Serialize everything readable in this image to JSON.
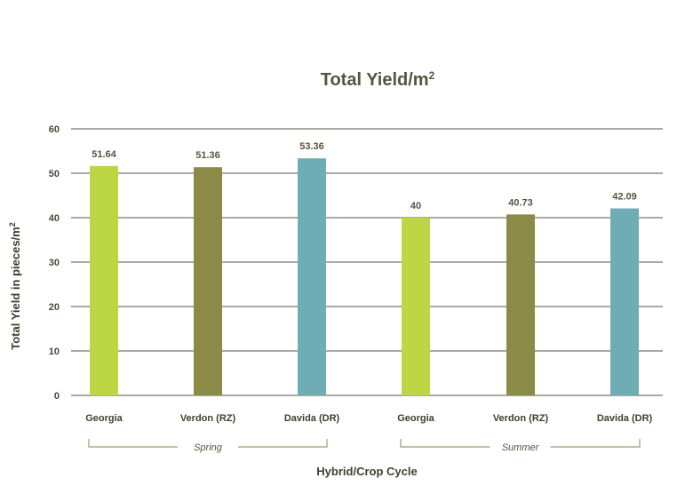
{
  "chart_data": {
    "type": "bar",
    "title": "Total Yield/m",
    "title_superscript": "2",
    "ylabel": "Total Yield in pieces/m",
    "ylabel_superscript": "2",
    "xlabel": "Hybrid/Crop Cycle",
    "ylim": [
      0,
      60
    ],
    "yticks": [
      0,
      10,
      20,
      30,
      40,
      50,
      60
    ],
    "grid": true,
    "groups": [
      {
        "name": "Spring",
        "start": 0,
        "end": 2
      },
      {
        "name": "Summer",
        "start": 3,
        "end": 5
      }
    ],
    "bars": [
      {
        "category": "Georgia",
        "value": 51.64,
        "label": "51.64",
        "color": "#bdd744"
      },
      {
        "category": "Verdon (RZ)",
        "value": 51.36,
        "label": "51.36",
        "color": "#8b8a47"
      },
      {
        "category": "Davida (DR)",
        "value": 53.36,
        "label": "53.36",
        "color": "#6fadb5"
      },
      {
        "category": "Georgia",
        "value": 40,
        "label": "40",
        "color": "#bdd744"
      },
      {
        "category": "Verdon (RZ)",
        "value": 40.73,
        "label": "40.73",
        "color": "#8b8a47"
      },
      {
        "category": "Davida (DR)",
        "value": 42.09,
        "label": "42.09",
        "color": "#6fadb5"
      }
    ]
  }
}
